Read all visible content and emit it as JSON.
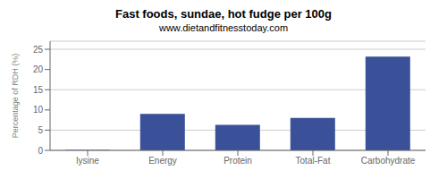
{
  "chart_data": {
    "type": "bar",
    "title": "Fast foods, sundae, hot fudge per 100g",
    "subtitle": "www.dietandfitnesstoday.com",
    "categories": [
      "lysine",
      "Energy",
      "Protein",
      "Total-Fat",
      "Carbohydrate"
    ],
    "values": [
      0.1,
      9.0,
      6.3,
      8.0,
      23.2
    ],
    "color": "#3a5199",
    "ylabel": "Percentage of RDH (%)",
    "ylim": [
      0,
      27
    ],
    "yticks": [
      0,
      5,
      10,
      15,
      20,
      25
    ],
    "grid": true
  }
}
